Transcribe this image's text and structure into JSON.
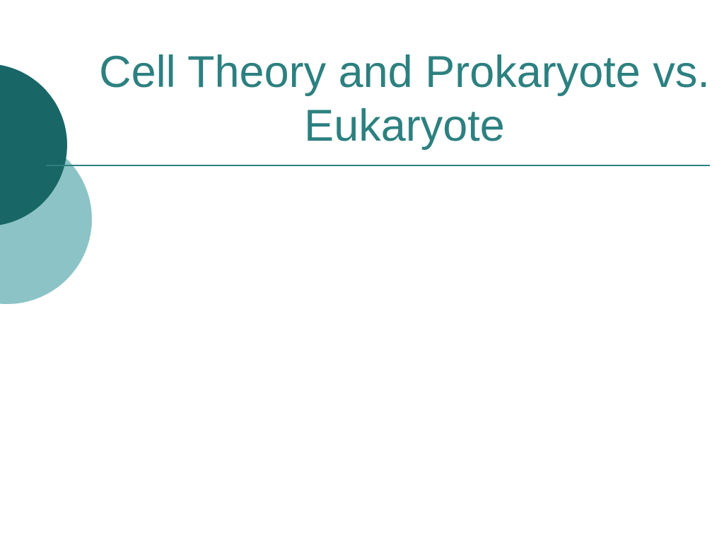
{
  "slide": {
    "title": "Cell Theory and Prokaryote vs. Eukaryote",
    "background_color": "#ffffff"
  },
  "theme": {
    "title_color": "#2d8080",
    "title_fontsize": 63,
    "title_fontweight": "normal",
    "underline_color": "#2d8080",
    "circle_dark_color": "#186666",
    "circle_light_color": "#8cc3c6"
  },
  "layout": {
    "type": "title-slide",
    "decorative_element": "overlapping-circles-left"
  }
}
